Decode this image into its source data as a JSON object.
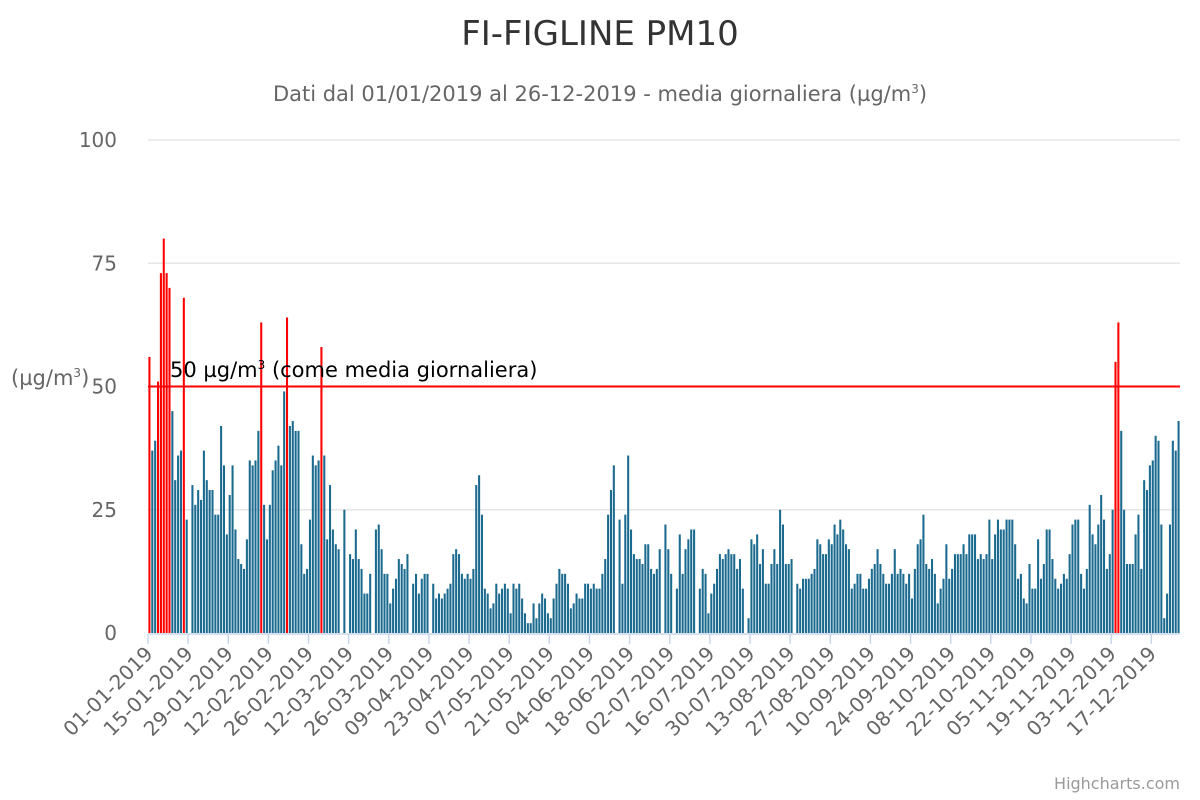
{
  "colors": {
    "bar": "#1b6a8f",
    "exceed": "#ff0000",
    "grid": "#e6e6e6",
    "axis": "#ccd6eb",
    "text": "#666666"
  },
  "chart_data": {
    "type": "bar",
    "title": "FI-FIGLINE PM10",
    "subtitle_prefix": "Dati dal 01/01/2019 al 26-12-2019 - media giornaliera (µg/m",
    "subtitle_sup": "3",
    "subtitle_suffix": ")",
    "ylabel_main": "(µg/m",
    "ylabel_sup": "3",
    "ylabel_suffix": ")",
    "ylim": [
      0,
      100
    ],
    "yticks": [
      0,
      25,
      50,
      75,
      100
    ],
    "threshold": {
      "value": 50,
      "label_main": "50 µg/m",
      "label_sup": "3",
      "label_suffix": " (come media giornaliera)"
    },
    "x_start": "01-01-2019",
    "x_end": "26-12-2019",
    "xtick_labels": [
      "01-01-2019",
      "15-01-2019",
      "29-01-2019",
      "12-02-2019",
      "26-02-2019",
      "12-03-2019",
      "26-03-2019",
      "09-04-2019",
      "23-04-2019",
      "07-05-2019",
      "21-05-2019",
      "04-06-2019",
      "18-06-2019",
      "02-07-2019",
      "16-07-2019",
      "30-07-2019",
      "13-08-2019",
      "27-08-2019",
      "10-09-2019",
      "24-09-2019",
      "08-10-2019",
      "22-10-2019",
      "05-11-2019",
      "19-11-2019",
      "03-12-2019",
      "17-12-2019"
    ],
    "grid": true,
    "values": [
      56,
      37,
      39,
      51,
      73,
      80,
      73,
      70,
      45,
      31,
      36,
      37,
      68,
      23,
      0,
      30,
      26,
      29,
      27,
      37,
      31,
      29,
      29,
      24,
      24,
      42,
      34,
      20,
      28,
      34,
      21,
      15,
      14,
      13,
      19,
      35,
      34,
      35,
      41,
      63,
      26,
      19,
      26,
      33,
      35,
      38,
      34,
      49,
      64,
      42,
      43,
      41,
      41,
      18,
      12,
      13,
      23,
      36,
      34,
      35,
      58,
      36,
      19,
      30,
      21,
      18,
      17,
      0,
      25,
      0,
      16,
      15,
      21,
      15,
      13,
      8,
      8,
      12,
      0,
      21,
      22,
      17,
      12,
      12,
      6,
      9,
      11,
      15,
      14,
      13,
      16,
      0,
      10,
      12,
      8,
      11,
      12,
      12,
      0,
      10,
      7,
      8,
      7,
      8,
      9,
      10,
      16,
      17,
      16,
      12,
      11,
      12,
      11,
      13,
      30,
      32,
      24,
      9,
      8,
      5,
      6,
      10,
      8,
      9,
      10,
      9,
      4,
      10,
      9,
      10,
      7,
      4,
      2,
      2,
      6,
      3,
      6,
      8,
      7,
      4,
      3,
      7,
      10,
      13,
      12,
      12,
      10,
      5,
      6,
      8,
      7,
      7,
      10,
      10,
      9,
      10,
      9,
      9,
      12,
      15,
      24,
      29,
      34,
      0,
      23,
      10,
      24,
      36,
      21,
      16,
      15,
      15,
      14,
      18,
      18,
      13,
      12,
      13,
      17,
      0,
      22,
      17,
      12,
      0,
      9,
      20,
      12,
      17,
      19,
      21,
      21,
      0,
      9,
      13,
      12,
      4,
      8,
      10,
      13,
      16,
      15,
      16,
      17,
      16,
      16,
      13,
      15,
      9,
      0,
      3,
      19,
      18,
      20,
      14,
      17,
      10,
      10,
      14,
      17,
      14,
      25,
      22,
      14,
      14,
      15,
      0,
      10,
      9,
      11,
      11,
      11,
      12,
      13,
      19,
      18,
      16,
      16,
      19,
      18,
      22,
      20,
      23,
      21,
      18,
      17,
      9,
      10,
      12,
      12,
      9,
      9,
      11,
      13,
      14,
      17,
      14,
      12,
      10,
      10,
      12,
      17,
      12,
      13,
      12,
      10,
      12,
      7,
      13,
      18,
      19,
      24,
      14,
      13,
      15,
      12,
      6,
      9,
      11,
      18,
      11,
      13,
      16,
      16,
      16,
      18,
      16,
      20,
      20,
      20,
      15,
      16,
      15,
      16,
      23,
      15,
      20,
      23,
      21,
      21,
      23,
      23,
      23,
      18,
      11,
      12,
      7,
      6,
      14,
      9,
      9,
      19,
      11,
      14,
      21,
      21,
      15,
      11,
      9,
      10,
      12,
      11,
      16,
      22,
      23,
      23,
      12,
      9,
      13,
      26,
      20,
      18,
      22,
      28,
      23,
      13,
      16,
      25,
      55,
      63,
      41,
      25,
      14,
      14,
      14,
      20,
      24,
      13,
      31,
      29,
      34,
      35,
      40,
      39,
      22,
      3,
      8,
      22,
      39,
      37,
      43
    ]
  },
  "credits": "Highcharts.com"
}
